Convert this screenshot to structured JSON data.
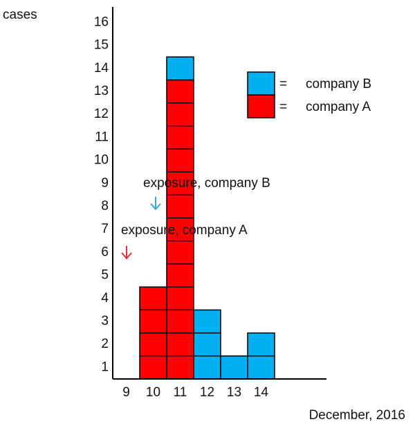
{
  "chart_data": {
    "type": "stacked_bar",
    "y_label": "cases",
    "x_label": "December, 2016",
    "categories": [
      "9",
      "10",
      "11",
      "12",
      "13",
      "14"
    ],
    "series": [
      {
        "name": "company A",
        "color": "#ff0000",
        "values": [
          0,
          4,
          13,
          0,
          0,
          0
        ]
      },
      {
        "name": "company B",
        "color": "#00b0f0",
        "values": [
          0,
          0,
          1,
          3,
          1,
          2
        ]
      }
    ],
    "legend_separator": "=",
    "ylim": [
      0,
      16
    ],
    "yticks": [
      1,
      2,
      3,
      4,
      5,
      6,
      7,
      8,
      9,
      10,
      11,
      12,
      13,
      14,
      15,
      16
    ],
    "annotations": [
      "exposure, company B",
      "exposure, company A"
    ]
  }
}
